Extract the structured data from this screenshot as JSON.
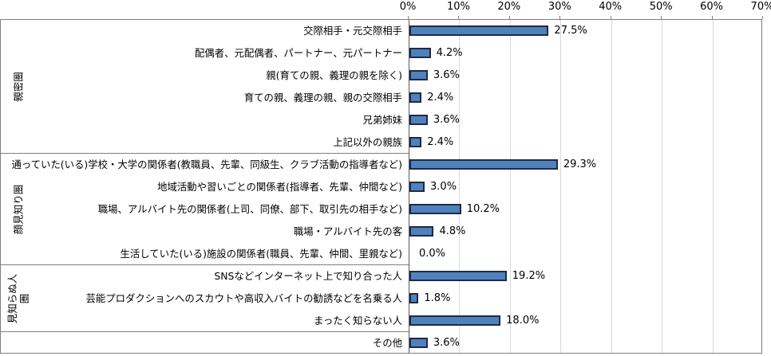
{
  "chart_data": {
    "type": "bar",
    "orientation": "horizontal",
    "title": "",
    "unit": "percent",
    "x_axis": {
      "position": "top",
      "min": 0,
      "max": 70,
      "tick_step": 10,
      "ticks": [
        "0%",
        "10%",
        "20%",
        "30%",
        "40%",
        "50%",
        "60%",
        "70%"
      ],
      "gridlines": true
    },
    "groups": [
      {
        "label": "親密圏",
        "label_lines": [
          "親密圏"
        ],
        "items": [
          {
            "label": "交際相手・元交際相手",
            "value": 27.5,
            "value_label": "27.5%"
          },
          {
            "label": "配偶者、元配偶者、パートナー、元パートナー",
            "value": 4.2,
            "value_label": "4.2%"
          },
          {
            "label": "親(育ての親、義理の親を除く)",
            "value": 3.6,
            "value_label": "3.6%"
          },
          {
            "label": "育ての親、義理の親、親の交際相手",
            "value": 2.4,
            "value_label": "2.4%"
          },
          {
            "label": "兄弟姉妹",
            "value": 3.6,
            "value_label": "3.6%"
          },
          {
            "label": "上記以外の親族",
            "value": 2.4,
            "value_label": "2.4%"
          }
        ]
      },
      {
        "label": "顔見知り圏",
        "label_lines": [
          "顔見知り圏"
        ],
        "items": [
          {
            "label": "通っていた(いる)学校・大学の関係者(教職員、先輩、同級生、クラブ活動の指導者など)",
            "value": 29.3,
            "value_label": "29.3%"
          },
          {
            "label": "地域活動や習いごとの関係者(指導者、先輩、仲間など)",
            "value": 3.0,
            "value_label": "3.0%"
          },
          {
            "label": "職場、アルバイト先の関係者(上司、同僚、部下、取引先の相手など)",
            "value": 10.2,
            "value_label": "10.2%"
          },
          {
            "label": "職場・アルバイト先の客",
            "value": 4.8,
            "value_label": "4.8%"
          },
          {
            "label": "生活していた(いる)施設の関係者(職員、先輩、仲間、里親など)",
            "value": 0.0,
            "value_label": "0.0%"
          }
        ]
      },
      {
        "label": "見知らぬ人圏",
        "label_lines": [
          "見知らぬ人",
          "圏"
        ],
        "items": [
          {
            "label": "SNSなどインターネット上で知り合った人",
            "value": 19.2,
            "value_label": "19.2%"
          },
          {
            "label": "芸能プロダクションへのスカウトや高収入バイトの勧誘などを名乗る人",
            "value": 1.8,
            "value_label": "1.8%"
          },
          {
            "label": "まったく知らない人",
            "value": 18.0,
            "value_label": "18.0%"
          }
        ]
      },
      {
        "label": "",
        "label_lines": [],
        "items": [
          {
            "label": "その他",
            "value": 3.6,
            "value_label": "3.6%"
          }
        ]
      }
    ],
    "colors": {
      "bar_fill": "#4f81bd",
      "bar_border": "#1e2b45",
      "gridline": "#d9d9d9",
      "frame_border": "#7f7f7f",
      "axis_line": "#595959",
      "text": "#000000",
      "background": "#ffffff"
    }
  }
}
